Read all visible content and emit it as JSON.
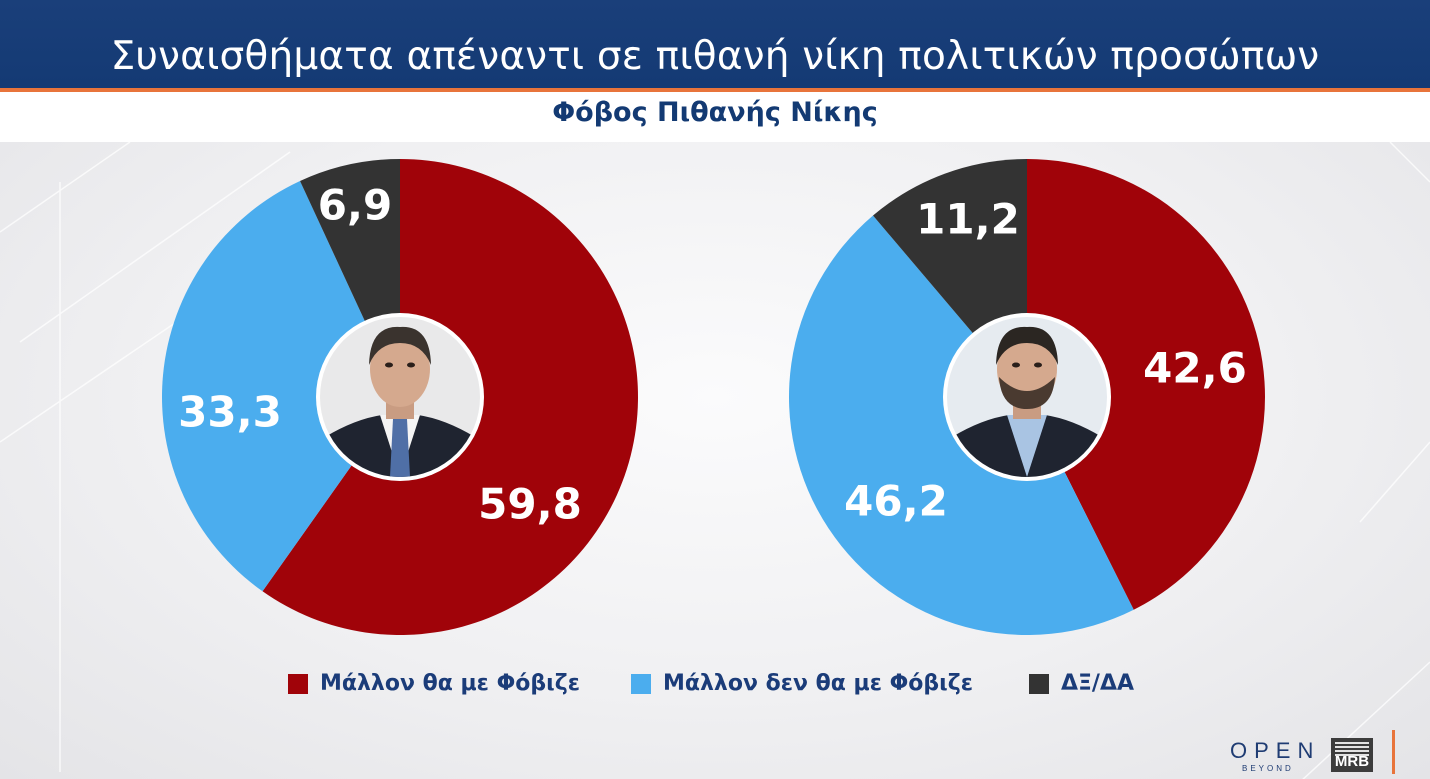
{
  "header": {
    "title": "Συναισθήματα απέναντι σε πιθανή νίκη πολιτικών προσώπων",
    "subtitle": "Φόβος Πιθανής Νίκης"
  },
  "colors": {
    "header_bg": "#143a74",
    "accent": "#e8743b",
    "title_text": "#133a73",
    "fear": "#a00309",
    "no_fear": "#4badee",
    "dk": "#333333"
  },
  "chart_data": [
    {
      "type": "pie",
      "variant": "donut",
      "center_image": "politician-portrait-1",
      "categories": [
        "Μάλλον θα με Φόβιζε",
        "Μάλλον δεν θα με Φόβιζε",
        "ΔΞ/ΔΑ"
      ],
      "values": [
        59.8,
        33.3,
        6.9
      ],
      "labels": [
        "59,8",
        "33,3",
        "6,9"
      ]
    },
    {
      "type": "pie",
      "variant": "donut",
      "center_image": "politician-portrait-2",
      "categories": [
        "Μάλλον θα με Φόβιζε",
        "Μάλλον δεν θα με Φόβιζε",
        "ΔΞ/ΔΑ"
      ],
      "values": [
        42.6,
        46.2,
        11.2
      ],
      "labels": [
        "42,6",
        "46,2",
        "11,2"
      ]
    }
  ],
  "legend": {
    "placement": "bottom",
    "items": [
      {
        "label": "Μάλλον θα με Φόβιζε",
        "color": "#a00309"
      },
      {
        "label": "Μάλλον δεν θα με Φόβιζε",
        "color": "#4badee"
      },
      {
        "label": "ΔΞ/ΔΑ",
        "color": "#333333"
      }
    ]
  },
  "branding": {
    "open": "OPEN",
    "open_sub": "BEYOND",
    "mrb": "MRB"
  }
}
